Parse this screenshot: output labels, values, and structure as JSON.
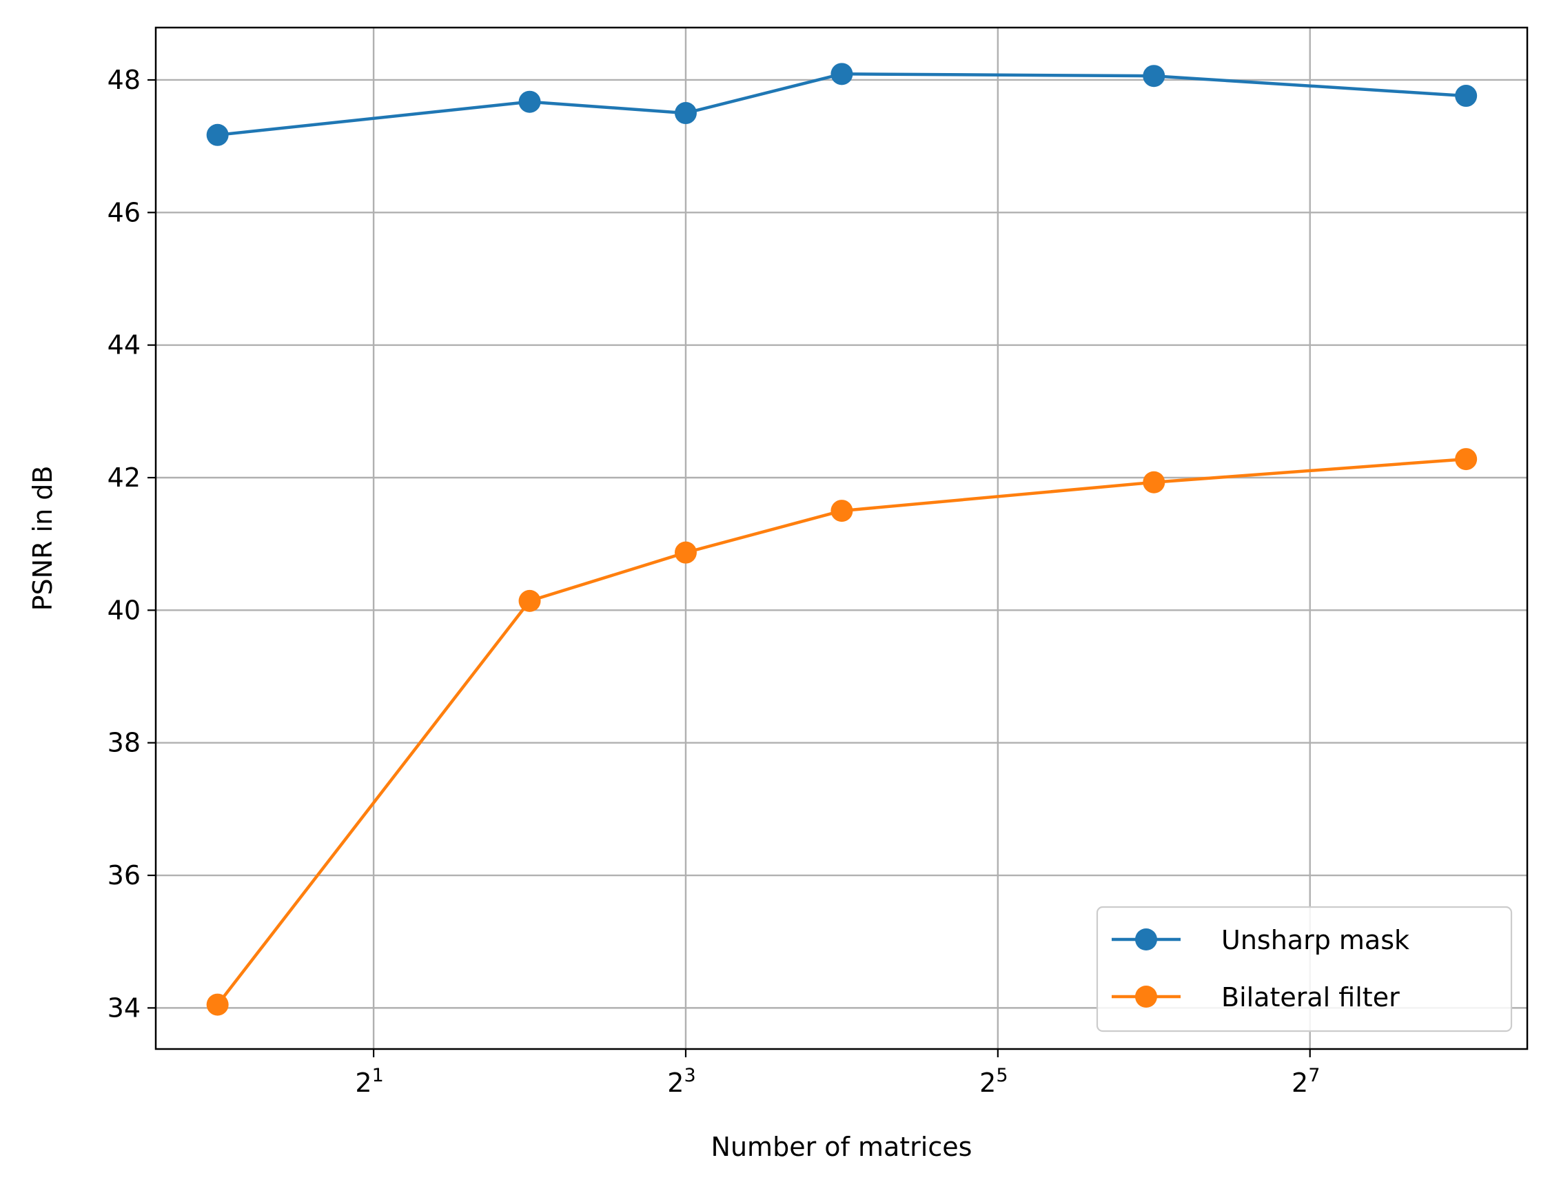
{
  "chart_data": {
    "type": "line",
    "title": "",
    "xlabel": "Number of matrices",
    "ylabel": "PSNR in dB",
    "x_scale": "log2",
    "x": [
      1,
      4,
      8,
      16,
      64,
      256
    ],
    "x_ticks": [
      {
        "value": 2,
        "base": "2",
        "exp": "1"
      },
      {
        "value": 8,
        "base": "2",
        "exp": "3"
      },
      {
        "value": 32,
        "base": "2",
        "exp": "5"
      },
      {
        "value": 128,
        "base": "2",
        "exp": "7"
      }
    ],
    "y_ticks": [
      "34",
      "36",
      "38",
      "40",
      "42",
      "44",
      "46",
      "48"
    ],
    "xlim": [
      0.76,
      336
    ],
    "ylim": [
      33.38,
      48.79
    ],
    "grid": true,
    "legend_position": "lower right",
    "series": [
      {
        "name": "Unsharp mask",
        "color": "#1f77b4",
        "marker": "circle",
        "values": [
          47.17,
          47.67,
          47.5,
          48.09,
          48.06,
          47.76
        ]
      },
      {
        "name": "Bilateral filter",
        "color": "#ff7f0e",
        "marker": "circle",
        "values": [
          34.05,
          40.14,
          40.87,
          41.5,
          41.93,
          42.28
        ]
      }
    ]
  }
}
